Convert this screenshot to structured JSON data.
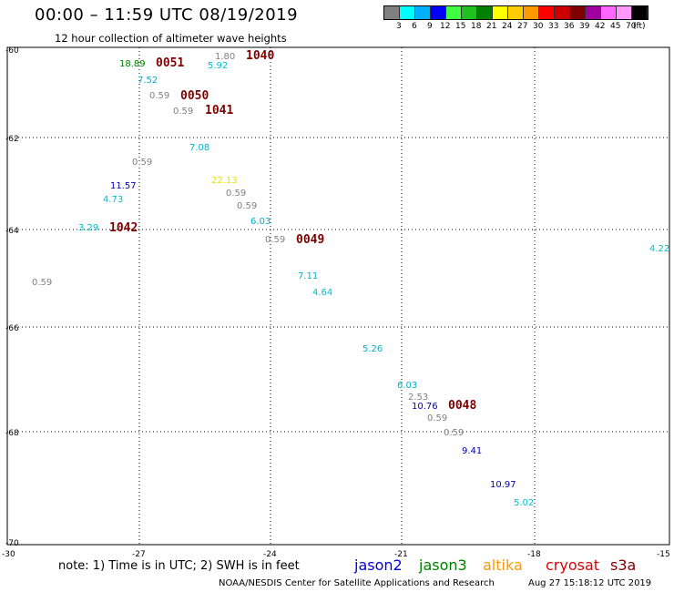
{
  "header": {
    "title": "00:00 – 11:59 UTC 08/19/2019",
    "subtitle": "12 hour collection of altimeter wave heights"
  },
  "legend": {
    "colors": [
      "#808080",
      "#00ffff",
      "#00b0ff",
      "#0000ff",
      "#40ff40",
      "#20c020",
      "#008000",
      "#ffff00",
      "#ffcc00",
      "#ff9900",
      "#ff0000",
      "#cc0000",
      "#800000",
      "#a000a0",
      "#ff66ff",
      "#ff99ff",
      "#000000"
    ],
    "labels": [
      "3",
      "6",
      "9",
      "12",
      "15",
      "18",
      "21",
      "24",
      "27",
      "30",
      "33",
      "36",
      "39",
      "42",
      "45",
      "70",
      "(ft)"
    ]
  },
  "axes": {
    "lat_labels": [
      "-60",
      "-62",
      "-64",
      "-66",
      "-68",
      "-70"
    ],
    "lon_labels": [
      "-30",
      "-27",
      "-24",
      "-21",
      "-18",
      "-15"
    ]
  },
  "observations": [
    {
      "text": "1.80",
      "color": "#808080"
    },
    {
      "text": "1040",
      "color": "#800000"
    },
    {
      "text": "18.89",
      "color": "#008000"
    },
    {
      "text": "0051",
      "color": "#800000"
    },
    {
      "text": "5.92",
      "color": "#00c0d0"
    },
    {
      "text": "7.52",
      "color": "#00b0d0"
    },
    {
      "text": "0.59",
      "color": "#808080"
    },
    {
      "text": "0050",
      "color": "#800000"
    },
    {
      "text": "0.59",
      "color": "#808080"
    },
    {
      "text": "1041",
      "color": "#800000"
    },
    {
      "text": "7.08",
      "color": "#00b0d0"
    },
    {
      "text": "0.59",
      "color": "#808080"
    },
    {
      "text": "22.13",
      "color": "#e8e000"
    },
    {
      "text": "11.57",
      "color": "#0000b0"
    },
    {
      "text": "0.59",
      "color": "#808080"
    },
    {
      "text": "4.73",
      "color": "#00c0d0"
    },
    {
      "text": "0.59",
      "color": "#808080"
    },
    {
      "text": "6.03",
      "color": "#00b0d0"
    },
    {
      "text": "3.29",
      "color": "#00c0d0"
    },
    {
      "text": "1042",
      "color": "#800000"
    },
    {
      "text": "0.59",
      "color": "#808080"
    },
    {
      "text": "0049",
      "color": "#800000"
    },
    {
      "text": "4.22",
      "color": "#00c0d0"
    },
    {
      "text": "0.59",
      "color": "#808080"
    },
    {
      "text": "7.11",
      "color": "#00b0d0"
    },
    {
      "text": "4.64",
      "color": "#00c0d0"
    },
    {
      "text": "5.26",
      "color": "#00b0d0"
    },
    {
      "text": "6.03",
      "color": "#00b0d0"
    },
    {
      "text": "2.53",
      "color": "#808080"
    },
    {
      "text": "10.76",
      "color": "#0000b0"
    },
    {
      "text": "0048",
      "color": "#800000"
    },
    {
      "text": "0.59",
      "color": "#808080"
    },
    {
      "text": "0.59",
      "color": "#808080"
    },
    {
      "text": "9.41",
      "color": "#0000b0"
    },
    {
      "text": "10.97",
      "color": "#0000b0"
    },
    {
      "text": "5.02",
      "color": "#00c0d0"
    }
  ],
  "footer": {
    "note": "note: 1) Time is in UTC; 2) SWH is in feet",
    "satellites": [
      {
        "name": "jason2",
        "color": "#0000e0"
      },
      {
        "name": "jason3",
        "color": "#008000"
      },
      {
        "name": "altika",
        "color": "#ff9900"
      },
      {
        "name": "cryosat",
        "color": "#e00000"
      },
      {
        "name": "s3a",
        "color": "#800000"
      }
    ],
    "credit": "NOAA/NESDIS Center for Satellite Applications and Research",
    "timestamp": "Aug 27 15:18:12 UTC 2019"
  }
}
